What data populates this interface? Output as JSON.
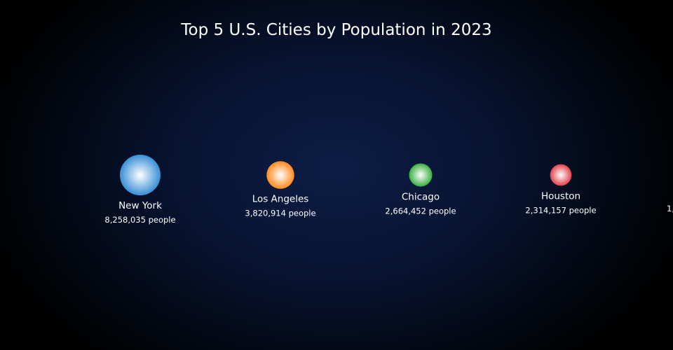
{
  "chart_data": {
    "type": "scatter",
    "title": "Top 5 U.S. Cities by Population in 2023",
    "unit_suffix": " people",
    "points": [
      {
        "name": "New York",
        "value": 8258035,
        "value_label": "8,258,035 people",
        "color": "#3a8fd6"
      },
      {
        "name": "Los Angeles",
        "value": 3820914,
        "value_label": "3,820,914 people",
        "color": "#ff8a1e"
      },
      {
        "name": "Chicago",
        "value": 2664452,
        "value_label": "2,664,452 people",
        "color": "#3cb043"
      },
      {
        "name": "Houston",
        "value": 2314157,
        "value_label": "2,314,157 people",
        "color": "#e0434a"
      },
      {
        "name": "",
        "value": null,
        "value_label": "1,",
        "color": "#9b59b6"
      }
    ],
    "legend": "none",
    "grid": false
  }
}
